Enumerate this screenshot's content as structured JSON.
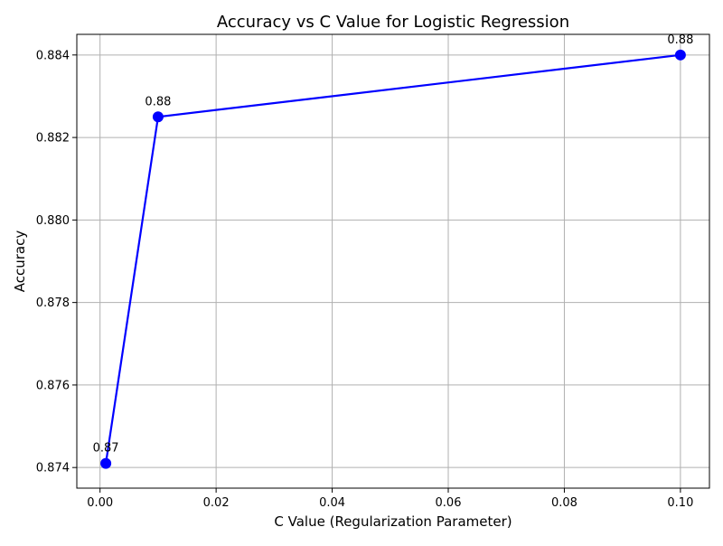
{
  "chart_data": {
    "type": "line",
    "title": "Accuracy vs C Value for Logistic Regression",
    "xlabel": "C Value (Regularization Parameter)",
    "ylabel": "Accuracy",
    "x": [
      0.001,
      0.01,
      0.1
    ],
    "series": [
      {
        "values": [
          0.8741,
          0.8825,
          0.884
        ],
        "data_labels": [
          "0.87",
          "0.88",
          "0.88"
        ],
        "color": "#0000ff"
      }
    ],
    "xlim": [
      -0.004,
      0.105
    ],
    "ylim": [
      0.8735,
      0.8845
    ],
    "x_ticks": [
      "0.00",
      "0.02",
      "0.04",
      "0.06",
      "0.08",
      "0.10"
    ],
    "x_tick_values": [
      0.0,
      0.02,
      0.04,
      0.06,
      0.08,
      0.1
    ],
    "y_ticks": [
      "0.874",
      "0.876",
      "0.878",
      "0.880",
      "0.882",
      "0.884"
    ],
    "y_tick_values": [
      0.874,
      0.876,
      0.878,
      0.88,
      0.882,
      0.884
    ],
    "grid": true,
    "grid_color": "#b0b0b0",
    "legend": false
  }
}
